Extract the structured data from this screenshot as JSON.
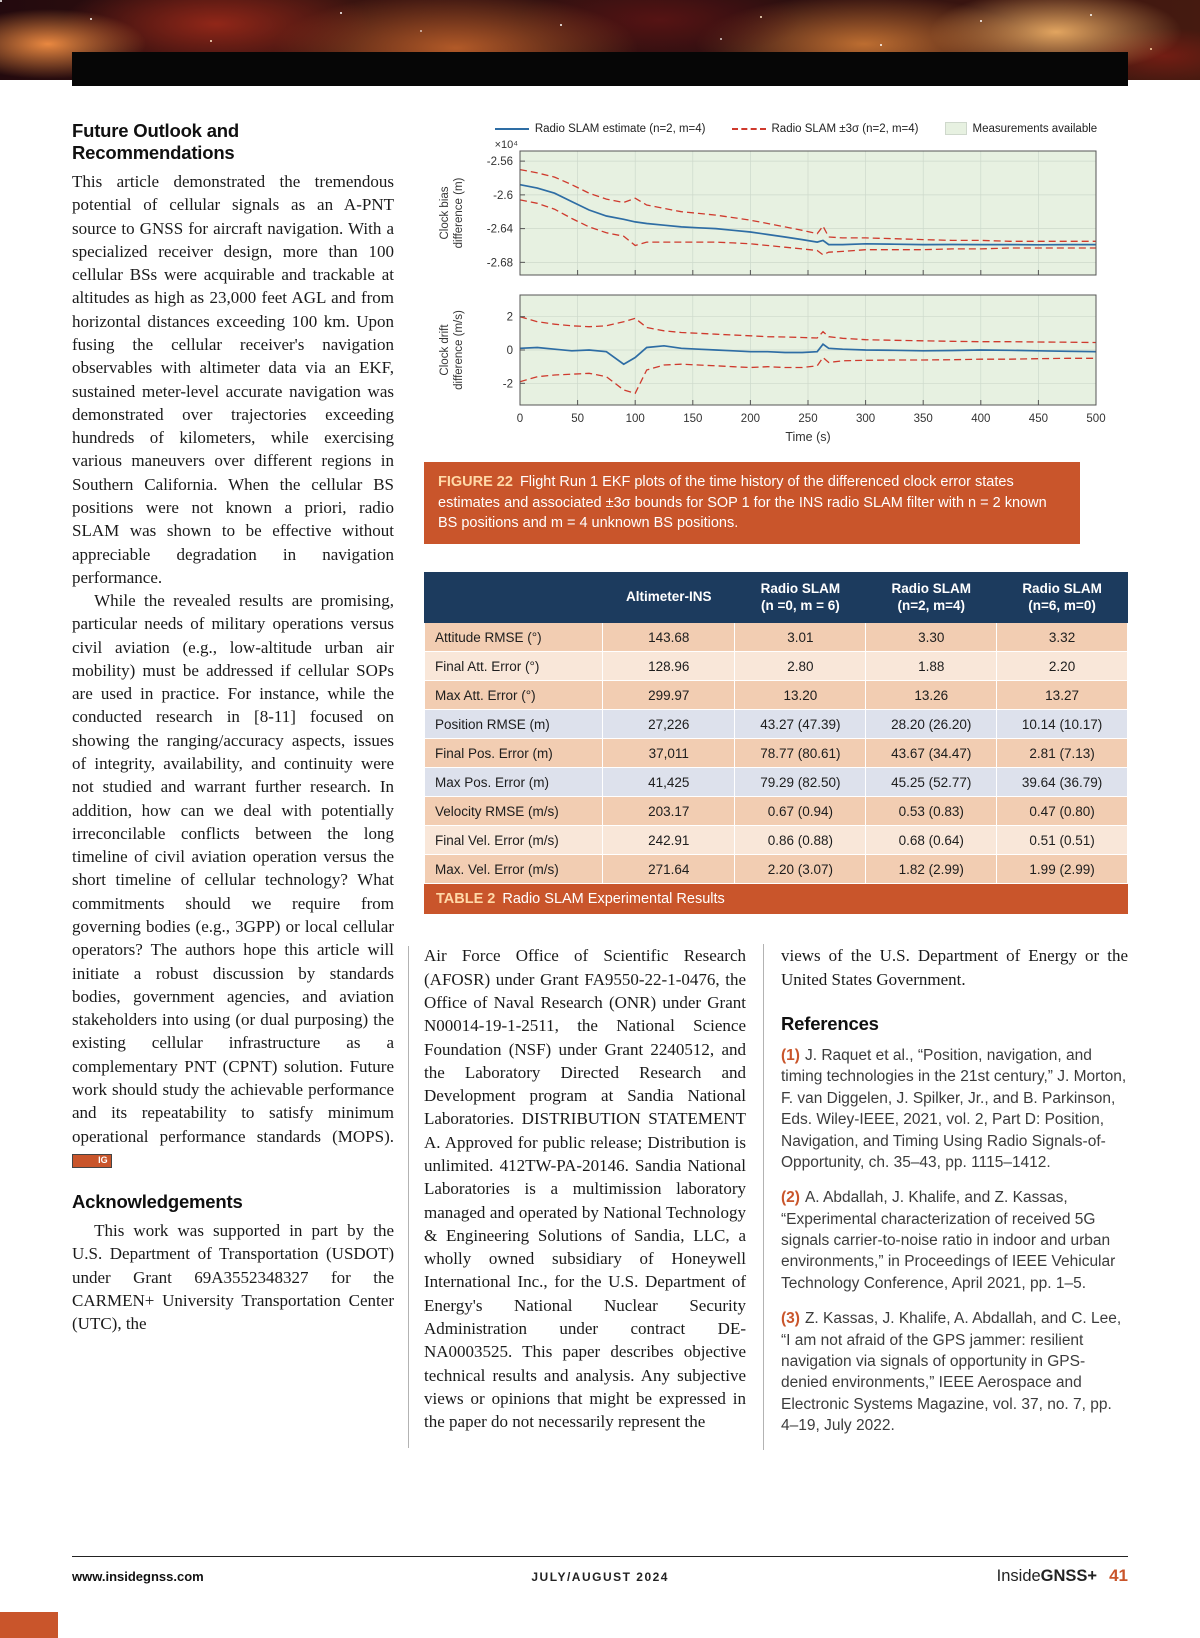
{
  "article": {
    "outlook": {
      "heading": "Future Outlook and Recommendations",
      "p1": "This article demonstrated the tremendous potential of cellular signals as an A-PNT source to GNSS for aircraft navigation. With a specialized receiver design, more than 100 cellular BSs were acquirable and trackable at altitudes as high as 23,000 feet AGL and from horizontal distances exceeding 100 km. Upon fusing the cellular receiver's navigation observables with altimeter data via an EKF, sustained meter-level accurate navigation was demonstrated over trajectories exceeding hundreds of kilometers, while exercising various maneuvers over different regions in Southern California. When the cellular BS positions were not known a priori, radio SLAM was shown to be effective without appreciable degradation in navigation performance.",
      "p2": "While the revealed results are promising, particular needs of military operations versus civil aviation (e.g., low-altitude urban air mobility) must be addressed if cellular SOPs are used in practice. For instance, while the conducted research in [8-11] focused on showing the ranging/accuracy aspects, issues of integrity, availability, and continuity were not studied and warrant further research. In addition, how can we deal with potentially irreconcilable conflicts between the long timeline of civil aviation operation versus the short timeline of cellular technology? What commitments should we require from governing bodies (e.g., 3GPP) or local cellular operators? The authors hope this article will initiate a robust discussion by standards bodies, government agencies, and aviation stakeholders into using (or dual purposing) the existing cellular infrastructure as a complementary PNT (CPNT) solution. Future work should study the achievable performance and its repeatability to satisfy minimum operational performance standards (MOPS).",
      "end_mark": "IG"
    },
    "ack": {
      "heading": "Acknowledgements",
      "p_left": "This work was supported in part by the U.S. Department of Transportation (USDOT) under Grant 69A3552348327 for the CARMEN+ University Transportation Center (UTC), the",
      "p_mid": "Air Force Office of Scientific Research (AFOSR) under Grant FA9550-22-1-0476, the Office of Naval Research (ONR) under Grant N00014-19-1-2511, the National Science Foundation (NSF) under Grant 2240512, and the Laboratory Directed Research and Development program at Sandia National Laboratories. DISTRIBUTION STATEMENT A. Approved for public release; Distribution is unlimited. 412TW-PA-20146. Sandia National Laboratories is a multimission laboratory managed and operated by National Technology & Engineering Solutions of Sandia, LLC, a wholly owned subsidiary of Honeywell International Inc., for the U.S. Department of Energy's National Nuclear Security Administration under contract DE- NA0003525. This paper describes objective technical results and analysis. Any subjective views or opinions that might be expressed in the paper do not necessarily represent the",
      "p_right": "views of the U.S. Department of Energy or the United States Government."
    }
  },
  "references": {
    "heading": "References",
    "items": [
      {
        "num": "(1)",
        "text": "J. Raquet et al., “Position, navigation, and timing technologies in the 21st century,” J. Morton, F. van Diggelen, J. Spilker, Jr., and B. Parkinson, Eds. Wiley-IEEE, 2021, vol. 2, Part D: Position, Navigation, and Timing Using Radio Signals-of-Opportunity, ch. 35–43, pp. 1115–1412."
      },
      {
        "num": "(2)",
        "text": "A. Abdallah, J. Khalife, and Z. Kassas, “Experimental characterization of received 5G signals carrier-to-noise ratio in indoor and urban environments,” in Proceedings of IEEE Vehicular Technology Conference, April 2021, pp. 1–5."
      },
      {
        "num": "(3)",
        "text": "Z. Kassas, J. Khalife, A. Abdallah, and C. Lee, “I am not afraid of the GPS jammer: resilient navigation via signals of opportunity in GPS-denied environments,” IEEE Aerospace and Electronic Systems Magazine, vol. 37, no. 7, pp. 4–19, July 2022."
      }
    ]
  },
  "figure": {
    "caption_label": "FIGURE 22",
    "caption_text": "Flight Run 1 EKF plots of the time history of the differenced clock error states estimates and associated ±3σ bounds for SOP 1 for the INS radio SLAM filter with n = 2 known BS positions and m = 4 unknown BS positions."
  },
  "chart_data": {
    "type": "line",
    "xlabel": "Time (s)",
    "xlim": [
      0,
      500
    ],
    "xticks": [
      0,
      50,
      100,
      150,
      200,
      250,
      300,
      350,
      400,
      450,
      500
    ],
    "meas_color": "#e7f1e1",
    "legend": [
      {
        "label": "Radio SLAM estimate (n=2, m=4)",
        "style": "solid",
        "color": "#2e6da4"
      },
      {
        "label": "Radio SLAM ±3σ (n=2, m=4)",
        "style": "dashed",
        "color": "#cf3a2d"
      },
      {
        "label": "Measurements available",
        "style": "patch",
        "color": "#e7f1e1"
      }
    ],
    "subplots": [
      {
        "ylabel_lines": [
          "Clock bias",
          "difference (m)"
        ],
        "scale_note": "×10⁴",
        "ylim": [
          -2.695,
          -2.548
        ],
        "yticks": [
          -2.56,
          -2.6,
          -2.64,
          -2.68
        ],
        "ytick_labels": [
          "-2.56",
          "-2.6",
          "-2.64",
          "-2.68"
        ],
        "x": [
          0,
          15,
          30,
          45,
          60,
          75,
          90,
          100,
          110,
          125,
          140,
          155,
          170,
          185,
          200,
          215,
          230,
          245,
          258,
          263,
          268,
          280,
          300,
          325,
          350,
          375,
          400,
          425,
          450,
          475,
          500
        ],
        "series": [
          {
            "name": "+3sigma bound",
            "style": "dashed",
            "color": "#cf3a2d",
            "y": [
              -2.57,
              -2.574,
              -2.579,
              -2.588,
              -2.598,
              -2.605,
              -2.609,
              -2.604,
              -2.612,
              -2.616,
              -2.62,
              -2.622,
              -2.624,
              -2.627,
              -2.63,
              -2.634,
              -2.638,
              -2.642,
              -2.646,
              -2.637,
              -2.65,
              -2.651,
              -2.651,
              -2.652,
              -2.653,
              -2.654,
              -2.654,
              -2.655,
              -2.655,
              -2.655,
              -2.655
            ]
          },
          {
            "name": "-3sigma bound",
            "style": "dashed",
            "color": "#cf3a2d",
            "y": [
              -2.606,
              -2.61,
              -2.617,
              -2.628,
              -2.638,
              -2.645,
              -2.649,
              -2.66,
              -2.656,
              -2.656,
              -2.656,
              -2.656,
              -2.656,
              -2.657,
              -2.658,
              -2.66,
              -2.662,
              -2.664,
              -2.666,
              -2.671,
              -2.668,
              -2.667,
              -2.665,
              -2.665,
              -2.665,
              -2.664,
              -2.664,
              -2.663,
              -2.663,
              -2.663,
              -2.663
            ]
          },
          {
            "name": "Radio SLAM estimate",
            "style": "solid",
            "color": "#2e6da4",
            "y": [
              -2.588,
              -2.592,
              -2.598,
              -2.608,
              -2.618,
              -2.625,
              -2.629,
              -2.632,
              -2.634,
              -2.636,
              -2.638,
              -2.639,
              -2.64,
              -2.642,
              -2.644,
              -2.647,
              -2.65,
              -2.653,
              -2.656,
              -2.654,
              -2.659,
              -2.659,
              -2.658,
              -2.6585,
              -2.659,
              -2.6588,
              -2.659,
              -2.659,
              -2.6592,
              -2.659,
              -2.659
            ]
          }
        ]
      },
      {
        "ylabel_lines": [
          "Clock drift",
          "difference (m/s)"
        ],
        "scale_note": "",
        "ylim": [
          -3.3,
          3.3
        ],
        "yticks": [
          2,
          0,
          -2
        ],
        "ytick_labels": [
          "2",
          "0",
          "-2"
        ],
        "x": [
          0,
          15,
          30,
          45,
          60,
          75,
          90,
          100,
          110,
          125,
          140,
          155,
          170,
          185,
          200,
          215,
          230,
          245,
          258,
          263,
          268,
          280,
          300,
          325,
          350,
          375,
          400,
          425,
          450,
          475,
          500
        ],
        "series": [
          {
            "name": "+3sigma bound",
            "style": "dashed",
            "color": "#cf3a2d",
            "y": [
              2.0,
              1.7,
              1.55,
              1.45,
              1.4,
              1.45,
              1.7,
              1.9,
              1.35,
              1.15,
              1.05,
              1.0,
              0.95,
              0.9,
              0.85,
              0.8,
              0.78,
              0.75,
              0.72,
              1.1,
              0.8,
              0.7,
              0.62,
              0.58,
              0.55,
              0.52,
              0.5,
              0.5,
              0.48,
              0.47,
              0.45
            ]
          },
          {
            "name": "-3sigma bound",
            "style": "dashed",
            "color": "#cf3a2d",
            "y": [
              -1.9,
              -1.6,
              -1.5,
              -1.45,
              -1.4,
              -1.6,
              -2.4,
              -2.6,
              -1.2,
              -0.9,
              -0.85,
              -0.9,
              -0.95,
              -1.0,
              -1.05,
              -1.0,
              -1.05,
              -1.05,
              -0.95,
              -0.45,
              -0.75,
              -0.65,
              -0.62,
              -0.6,
              -0.6,
              -0.58,
              -0.55,
              -0.55,
              -0.52,
              -0.5,
              -0.5
            ]
          },
          {
            "name": "Radio SLAM estimate",
            "style": "solid",
            "color": "#2e6da4",
            "y": [
              0.1,
              0.15,
              0.05,
              -0.05,
              0.0,
              -0.1,
              -0.85,
              -0.45,
              0.15,
              0.25,
              0.1,
              0.05,
              0.0,
              -0.05,
              -0.1,
              -0.1,
              -0.15,
              -0.15,
              -0.1,
              0.35,
              0.1,
              0.05,
              0.0,
              -0.02,
              -0.05,
              -0.03,
              0.0,
              -0.02,
              -0.05,
              -0.08,
              -0.1
            ]
          }
        ]
      }
    ]
  },
  "table": {
    "caption_label": "TABLE 2",
    "caption_text": "Radio SLAM Experimental Results",
    "columns": [
      {
        "l1": "",
        "l2": ""
      },
      {
        "l1": "Altimeter-INS",
        "l2": ""
      },
      {
        "l1": "Radio SLAM",
        "l2": "(n =0, m = 6)"
      },
      {
        "l1": "Radio SLAM",
        "l2": "(n=2, m=4)"
      },
      {
        "l1": "Radio SLAM",
        "l2": "(n=6, m=0)"
      }
    ],
    "rows": [
      {
        "tone": "peach",
        "label": "Attitude RMSE (°)",
        "values": [
          "143.68",
          "3.01",
          "3.30",
          "3.32"
        ]
      },
      {
        "tone": "cream",
        "label": "Final Att. Error (°)",
        "values": [
          "128.96",
          "2.80",
          "1.88",
          "2.20"
        ]
      },
      {
        "tone": "peach",
        "label": "Max Att. Error (°)",
        "values": [
          "299.97",
          "13.20",
          "13.26",
          "13.27"
        ]
      },
      {
        "tone": "blue",
        "label": "Position RMSE (m)",
        "values": [
          "27,226",
          "43.27 (47.39)",
          "28.20 (26.20)",
          "10.14 (10.17)"
        ]
      },
      {
        "tone": "peach",
        "label": "Final Pos. Error (m)",
        "values": [
          "37,011",
          "78.77 (80.61)",
          "43.67 (34.47)",
          "2.81 (7.13)"
        ]
      },
      {
        "tone": "blue",
        "label": "Max Pos. Error (m)",
        "values": [
          "41,425",
          "79.29 (82.50)",
          "45.25 (52.77)",
          "39.64 (36.79)"
        ]
      },
      {
        "tone": "peach",
        "label": "Velocity RMSE (m/s)",
        "values": [
          "203.17",
          "0.67 (0.94)",
          "0.53 (0.83)",
          "0.47 (0.80)"
        ]
      },
      {
        "tone": "cream",
        "label": "Final Vel. Error (m/s)",
        "values": [
          "242.91",
          "0.86 (0.88)",
          "0.68 (0.64)",
          "0.51 (0.51)"
        ]
      },
      {
        "tone": "peach",
        "label": "Max. Vel. Error (m/s)",
        "values": [
          "271.64",
          "2.20 (3.07)",
          "1.82 (2.99)",
          "1.99 (2.99)"
        ]
      }
    ]
  },
  "footer": {
    "url": "www.insidegnss.com",
    "issue": "JULY/AUGUST 2024",
    "brand_light": "Inside",
    "brand_bold": "GNSS+",
    "page_number": "41"
  },
  "colors": {
    "accent_orange": "#c9552b",
    "header_navy": "#1c3b5e",
    "estimate_blue": "#2e6da4",
    "bound_red": "#cf3a2d",
    "measurements_green": "#e7f1e1"
  }
}
